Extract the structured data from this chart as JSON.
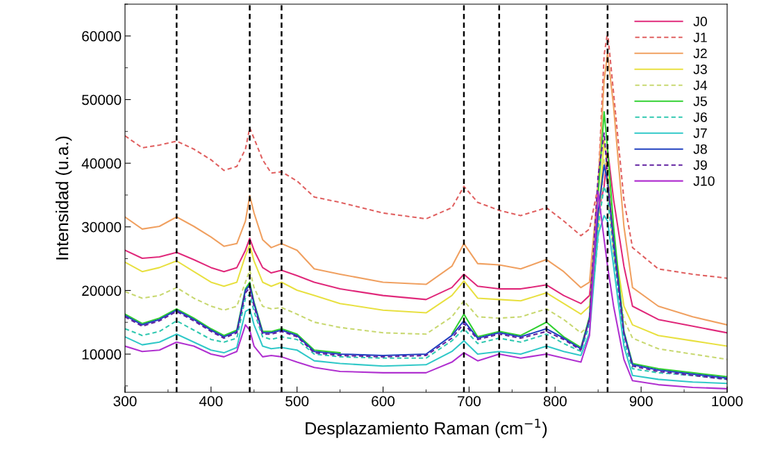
{
  "chart_data": {
    "type": "line",
    "xlabel": "Desplazamiento Raman (cm$^{−1}$)",
    "ylabel": "Intensidad (u.a.)",
    "xlim": [
      300,
      1000
    ],
    "xticks": [
      300,
      400,
      500,
      600,
      700,
      800,
      900,
      1000
    ],
    "ylim": [
      4000,
      65000
    ],
    "yticks": [
      10000,
      20000,
      30000,
      40000,
      50000,
      60000
    ],
    "grid": false,
    "legend": "top right",
    "x": [
      300,
      320,
      340,
      360,
      380,
      400,
      415,
      430,
      440,
      445,
      450,
      460,
      470,
      482,
      500,
      520,
      550,
      600,
      650,
      680,
      694,
      710,
      735,
      760,
      790,
      810,
      830,
      840,
      850,
      857,
      861,
      868,
      880,
      890,
      920,
      960,
      1000
    ],
    "series": [
      {
        "name": "J0",
        "color": "#e0287a",
        "line_style": "solid",
        "values": [
          26320,
          25060,
          25270,
          25980,
          24850,
          23600,
          22970,
          23600,
          26320,
          28200,
          26320,
          23600,
          22760,
          23180,
          22340,
          21300,
          20250,
          19210,
          18580,
          20460,
          22550,
          20670,
          20250,
          20250,
          20880,
          19210,
          17950,
          19210,
          32180,
          36360,
          42220,
          34270,
          23810,
          17530,
          15440,
          14390,
          13350
        ]
      },
      {
        "name": "J1",
        "color": "#e06060",
        "line_style": "dashed",
        "values": [
          44310,
          42430,
          42850,
          43470,
          42220,
          40540,
          38870,
          39500,
          42220,
          45570,
          43900,
          40540,
          38450,
          38660,
          37200,
          34690,
          33850,
          32180,
          31260,
          33010,
          36360,
          33850,
          32600,
          31760,
          33010,
          30920,
          28620,
          29660,
          36360,
          57000,
          60630,
          51000,
          34270,
          26740,
          23390,
          22550,
          21930
        ]
      },
      {
        "name": "J2",
        "color": "#f0a060",
        "line_style": "solid",
        "values": [
          31550,
          29660,
          30080,
          31550,
          30080,
          28410,
          26950,
          27370,
          30920,
          34900,
          32180,
          27990,
          26740,
          27370,
          26320,
          23390,
          22550,
          21300,
          20960,
          23810,
          27370,
          24230,
          24020,
          23390,
          24860,
          22970,
          20460,
          21300,
          36360,
          53000,
          57280,
          48910,
          30080,
          20460,
          17530,
          15860,
          14600
        ]
      },
      {
        "name": "J3",
        "color": "#e8e040",
        "line_style": "solid",
        "values": [
          24440,
          22970,
          23600,
          24650,
          22970,
          21300,
          20670,
          21300,
          25480,
          27150,
          24650,
          21300,
          20670,
          21300,
          20040,
          19210,
          17950,
          16910,
          16490,
          19210,
          21510,
          18790,
          18580,
          18370,
          19630,
          17950,
          16280,
          17530,
          30080,
          43900,
          38660,
          27990,
          17530,
          14600,
          12930,
          12090,
          11260
        ]
      },
      {
        "name": "J4",
        "color": "#c8d870",
        "line_style": "dashed",
        "values": [
          19830,
          18790,
          19210,
          20460,
          18790,
          17530,
          16910,
          17530,
          21300,
          23180,
          20460,
          17530,
          17110,
          17320,
          16280,
          15020,
          14190,
          13350,
          13140,
          15860,
          18370,
          15860,
          15650,
          15860,
          17110,
          15440,
          13350,
          14600,
          27990,
          40540,
          36360,
          25900,
          15440,
          12510,
          10840,
          10000,
          9170
        ]
      },
      {
        "name": "J5",
        "color": "#30d030",
        "line_style": "solid",
        "values": [
          16280,
          14810,
          15650,
          17110,
          15650,
          13980,
          12930,
          13770,
          20250,
          21300,
          18160,
          13560,
          13560,
          13980,
          13140,
          10630,
          10210,
          null,
          null,
          13140,
          16280,
          12720,
          13560,
          12930,
          15020,
          12720,
          11040,
          15860,
          35000,
          48080,
          42220,
          30080,
          13560,
          8540,
          7700,
          7070,
          6450
        ]
      },
      {
        "name": "J6",
        "color": "#30c8b0",
        "line_style": "dashed",
        "values": [
          13980,
          12930,
          13560,
          15230,
          13770,
          12300,
          11880,
          12510,
          18790,
          19420,
          16700,
          12720,
          12300,
          12720,
          12300,
          10000,
          9580,
          9370,
          9370,
          12090,
          13980,
          11670,
          12510,
          11880,
          13140,
          11670,
          10420,
          14600,
          30080,
          36360,
          34690,
          25900,
          12090,
          7700,
          7070,
          6650,
          6030
        ]
      },
      {
        "name": "J7",
        "color": "#30c8c8",
        "line_style": "solid",
        "values": [
          12720,
          11460,
          11880,
          13140,
          11880,
          10630,
          10210,
          11040,
          16700,
          17110,
          14600,
          11250,
          10840,
          11040,
          10630,
          8950,
          8530,
          8120,
          8330,
          10420,
          12090,
          10000,
          10420,
          10000,
          11250,
          10420,
          9790,
          13350,
          28830,
          31760,
          30920,
          23810,
          11250,
          6650,
          6030,
          5610,
          5400
        ]
      },
      {
        "name": "J8",
        "color": "#2040c0",
        "line_style": "solid",
        "values": [
          16070,
          14600,
          15440,
          16910,
          15440,
          13770,
          12720,
          13560,
          20040,
          20880,
          17950,
          13350,
          13350,
          13770,
          12930,
          10420,
          10000,
          9790,
          10000,
          12930,
          15230,
          12510,
          13350,
          12720,
          13980,
          12510,
          10840,
          15440,
          32180,
          39700,
          37200,
          27990,
          13350,
          8330,
          7490,
          6860,
          6240
        ]
      },
      {
        "name": "J9",
        "color": "#6020a0",
        "line_style": "dashed",
        "values": [
          15860,
          14390,
          15230,
          16700,
          15230,
          13560,
          12510,
          13350,
          19630,
          20460,
          17530,
          13140,
          13140,
          13560,
          12720,
          10210,
          9790,
          9580,
          9790,
          12510,
          14810,
          12300,
          13140,
          12510,
          13560,
          12300,
          10630,
          15650,
          38000,
          44750,
          38000,
          27000,
          13140,
          8120,
          7280,
          6650,
          6030
        ]
      },
      {
        "name": "J10",
        "color": "#b030d0",
        "line_style": "solid",
        "values": [
          11250,
          10420,
          10630,
          11880,
          11250,
          10000,
          9580,
          10420,
          14600,
          13770,
          11250,
          9580,
          9790,
          9580,
          8740,
          7900,
          7280,
          7070,
          7070,
          8740,
          10210,
          8950,
          10000,
          9370,
          10000,
          9370,
          8740,
          12930,
          35530,
          27990,
          23810,
          17530,
          9170,
          5820,
          5190,
          4770,
          4560
        ]
      }
    ],
    "ref_lines": [
      {
        "axis": "x",
        "value": 360,
        "color": "#000000",
        "line_style": "dashed"
      },
      {
        "axis": "x",
        "value": 445,
        "color": "#000000",
        "line_style": "dashed"
      },
      {
        "axis": "x",
        "value": 482,
        "color": "#000000",
        "line_style": "dashed"
      },
      {
        "axis": "x",
        "value": 694,
        "color": "#000000",
        "line_style": "dashed"
      },
      {
        "axis": "x",
        "value": 735,
        "color": "#000000",
        "line_style": "dashed"
      },
      {
        "axis": "x",
        "value": 790,
        "color": "#000000",
        "line_style": "dashed"
      },
      {
        "axis": "x",
        "value": 861,
        "color": "#000000",
        "line_style": "dashed"
      }
    ]
  }
}
